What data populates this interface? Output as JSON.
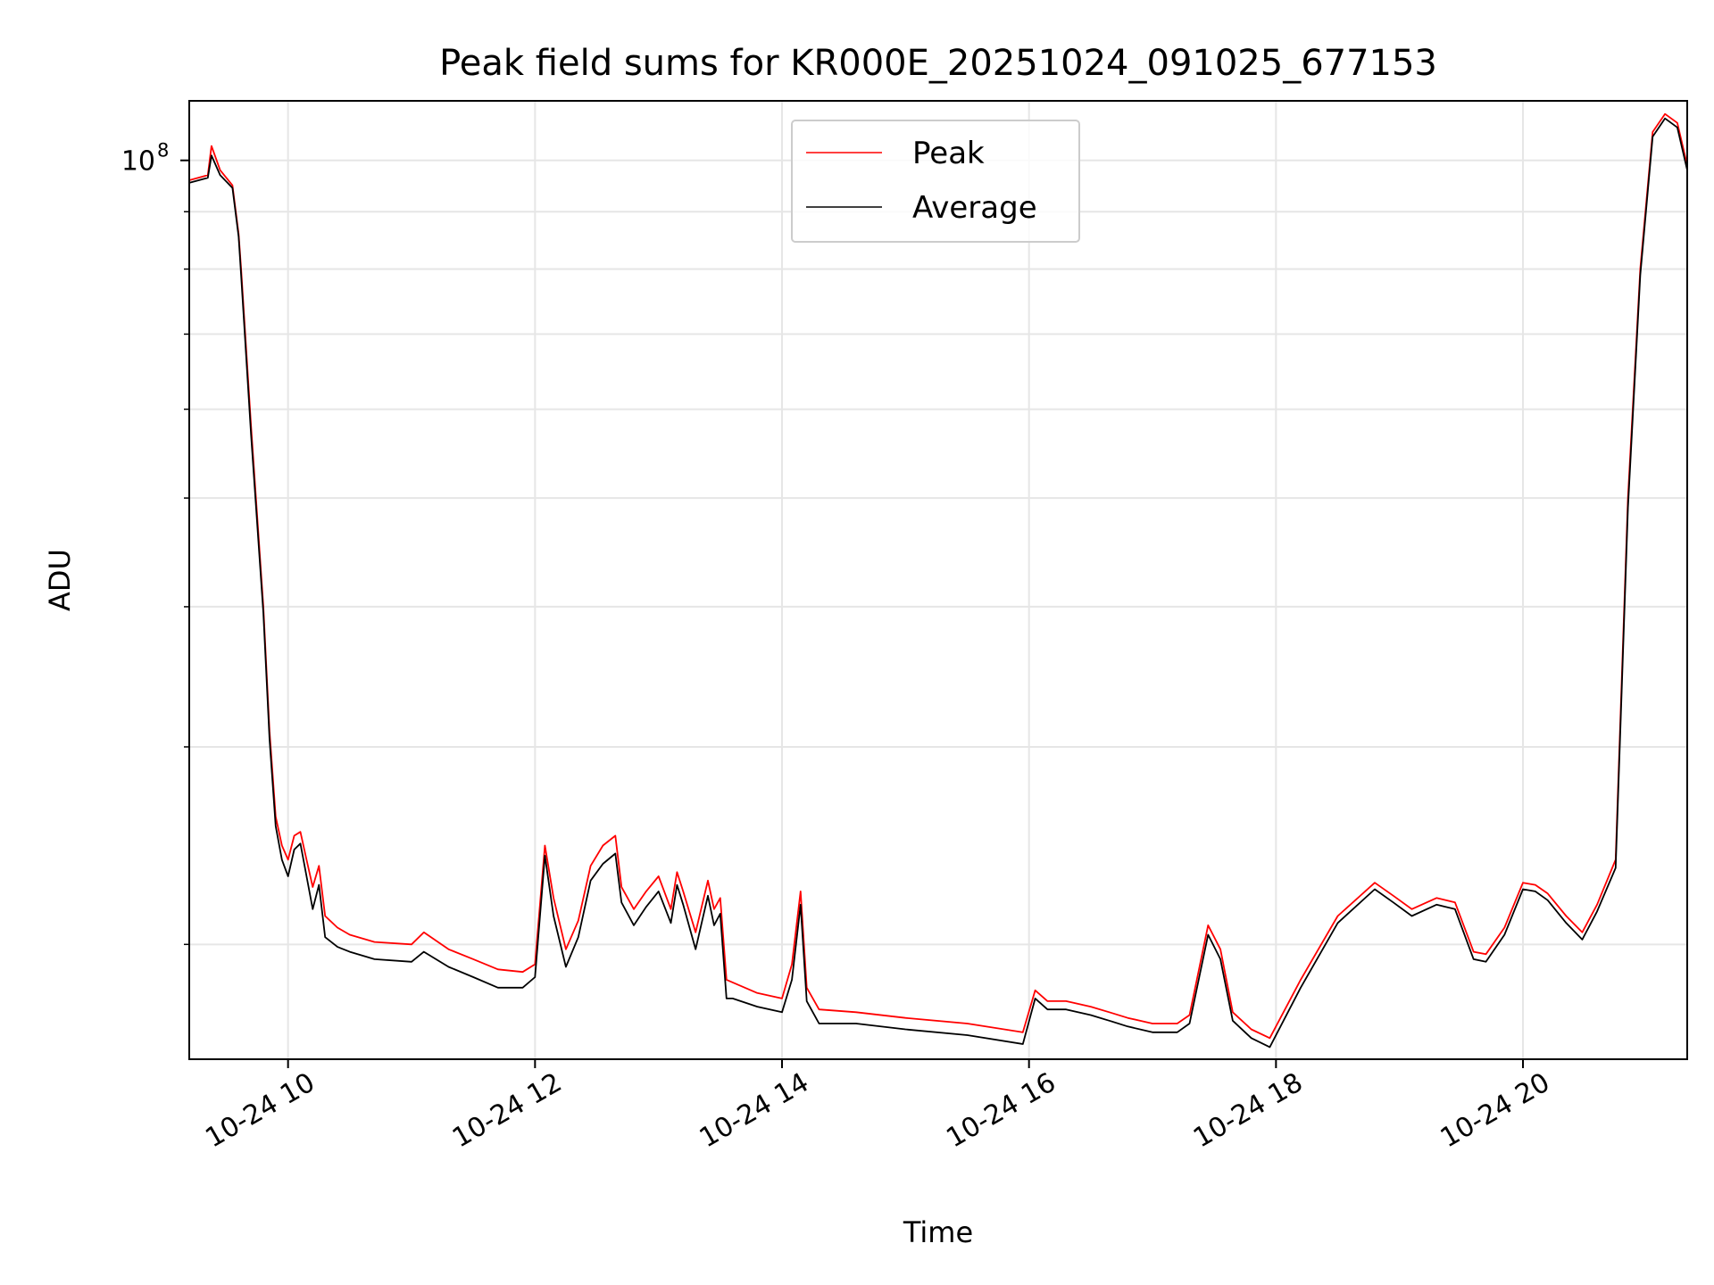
{
  "chart_data": {
    "type": "line",
    "title": "Peak field sums for KR000E_20251024_091025_677153",
    "xlabel": "Time",
    "ylabel": "ADU",
    "yscale": "log",
    "xlim": [
      9.2,
      21.33
    ],
    "ylim": [
      15800000.0,
      113000000.0
    ],
    "x_ticks": [
      10,
      12,
      14,
      16,
      18,
      20
    ],
    "x_tick_labels": [
      "10-24 10",
      "10-24 12",
      "10-24 14",
      "10-24 16",
      "10-24 18",
      "10-24 20"
    ],
    "y_major_ticks": [
      100000000
    ],
    "y_major_tick_base": "10",
    "y_major_tick_exp": "8",
    "y_minor_ticks": [
      20000000,
      30000000,
      40000000,
      50000000,
      60000000,
      70000000,
      80000000,
      90000000
    ],
    "grid": true,
    "legend": {
      "position": "top-center",
      "entries": [
        "Peak",
        "Average"
      ]
    },
    "series": [
      {
        "name": "Peak",
        "color": "#ff0000",
        "x": [
          9.2,
          9.35,
          9.38,
          9.45,
          9.55,
          9.6,
          9.62,
          9.7,
          9.8,
          9.85,
          9.9,
          9.95,
          10.0,
          10.05,
          10.1,
          10.15,
          10.2,
          10.25,
          10.3,
          10.4,
          10.5,
          10.7,
          11.0,
          11.1,
          11.3,
          11.5,
          11.7,
          11.9,
          12.0,
          12.08,
          12.15,
          12.25,
          12.35,
          12.45,
          12.55,
          12.65,
          12.7,
          12.8,
          12.9,
          13.0,
          13.1,
          13.15,
          13.2,
          13.3,
          13.4,
          13.45,
          13.5,
          13.55,
          13.6,
          13.8,
          14.0,
          14.08,
          14.15,
          14.2,
          14.3,
          14.6,
          15.0,
          15.5,
          15.95,
          16.05,
          16.15,
          16.3,
          16.5,
          16.65,
          16.8,
          17.0,
          17.2,
          17.3,
          17.45,
          17.55,
          17.65,
          17.8,
          17.95,
          18.2,
          18.5,
          18.8,
          18.95,
          19.1,
          19.3,
          19.45,
          19.6,
          19.7,
          19.85,
          20.0,
          20.1,
          20.2,
          20.35,
          20.48,
          20.6,
          20.75,
          20.85,
          20.95,
          21.05,
          21.15,
          21.25,
          21.33
        ],
        "y": [
          96000000,
          97000000,
          103000000,
          98000000,
          95000000,
          86000000,
          80000000,
          58000000,
          40000000,
          31000000,
          26000000,
          24500000,
          23800000,
          25000000,
          25200000,
          23800000,
          22500000,
          23500000,
          21200000,
          20700000,
          20400000,
          20100000,
          20000000,
          20500000,
          19800000,
          19400000,
          19000000,
          18900000,
          19200000,
          24500000,
          22000000,
          19800000,
          21000000,
          23500000,
          24500000,
          25000000,
          22500000,
          21500000,
          22300000,
          23000000,
          21500000,
          23200000,
          22300000,
          20500000,
          22800000,
          21500000,
          22000000,
          18600000,
          18500000,
          18100000,
          17900000,
          19200000,
          22300000,
          18300000,
          17500000,
          17400000,
          17200000,
          17000000,
          16700000,
          18200000,
          17800000,
          17800000,
          17600000,
          17400000,
          17200000,
          17000000,
          17000000,
          17300000,
          20800000,
          19800000,
          17400000,
          16800000,
          16500000,
          18600000,
          21200000,
          22700000,
          22100000,
          21500000,
          22000000,
          21800000,
          19700000,
          19600000,
          20700000,
          22700000,
          22600000,
          22200000,
          21200000,
          20500000,
          21700000,
          23800000,
          50000000,
          80000000,
          106000000,
          110000000,
          108000000,
          99000000
        ]
      },
      {
        "name": "Average",
        "color": "#000000",
        "x": [
          9.2,
          9.35,
          9.38,
          9.45,
          9.55,
          9.6,
          9.62,
          9.7,
          9.8,
          9.85,
          9.9,
          9.95,
          10.0,
          10.05,
          10.1,
          10.15,
          10.2,
          10.25,
          10.3,
          10.4,
          10.5,
          10.7,
          11.0,
          11.1,
          11.3,
          11.5,
          11.7,
          11.9,
          12.0,
          12.08,
          12.15,
          12.25,
          12.35,
          12.45,
          12.55,
          12.65,
          12.7,
          12.8,
          12.9,
          13.0,
          13.1,
          13.15,
          13.2,
          13.3,
          13.4,
          13.45,
          13.5,
          13.55,
          13.6,
          13.8,
          14.0,
          14.08,
          14.15,
          14.2,
          14.3,
          14.6,
          15.0,
          15.5,
          15.95,
          16.05,
          16.15,
          16.3,
          16.5,
          16.65,
          16.8,
          17.0,
          17.2,
          17.3,
          17.45,
          17.55,
          17.65,
          17.8,
          17.95,
          18.2,
          18.5,
          18.8,
          18.95,
          19.1,
          19.3,
          19.45,
          19.6,
          19.7,
          19.85,
          20.0,
          20.1,
          20.2,
          20.35,
          20.48,
          20.6,
          20.75,
          20.85,
          20.95,
          21.05,
          21.15,
          21.25,
          21.33
        ],
        "y": [
          95500000,
          96500000,
          101000000,
          97000000,
          94500000,
          85500000,
          79000000,
          57000000,
          39500000,
          30500000,
          25500000,
          23800000,
          23000000,
          24300000,
          24600000,
          23000000,
          21500000,
          22600000,
          20300000,
          19900000,
          19700000,
          19400000,
          19300000,
          19700000,
          19100000,
          18700000,
          18300000,
          18300000,
          18700000,
          24000000,
          21200000,
          19100000,
          20300000,
          22800000,
          23600000,
          24100000,
          21800000,
          20800000,
          21600000,
          22300000,
          20900000,
          22600000,
          21700000,
          19800000,
          22100000,
          20800000,
          21300000,
          17900000,
          17900000,
          17600000,
          17400000,
          18600000,
          21700000,
          17800000,
          17000000,
          17000000,
          16800000,
          16600000,
          16300000,
          17900000,
          17500000,
          17500000,
          17300000,
          17100000,
          16900000,
          16700000,
          16700000,
          17000000,
          20400000,
          19400000,
          17100000,
          16500000,
          16200000,
          18300000,
          20900000,
          22400000,
          21800000,
          21200000,
          21700000,
          21500000,
          19400000,
          19300000,
          20400000,
          22400000,
          22300000,
          21900000,
          20900000,
          20200000,
          21400000,
          23400000,
          49000000,
          79000000,
          105000000,
          109000000,
          107000000,
          98000000
        ]
      }
    ]
  }
}
